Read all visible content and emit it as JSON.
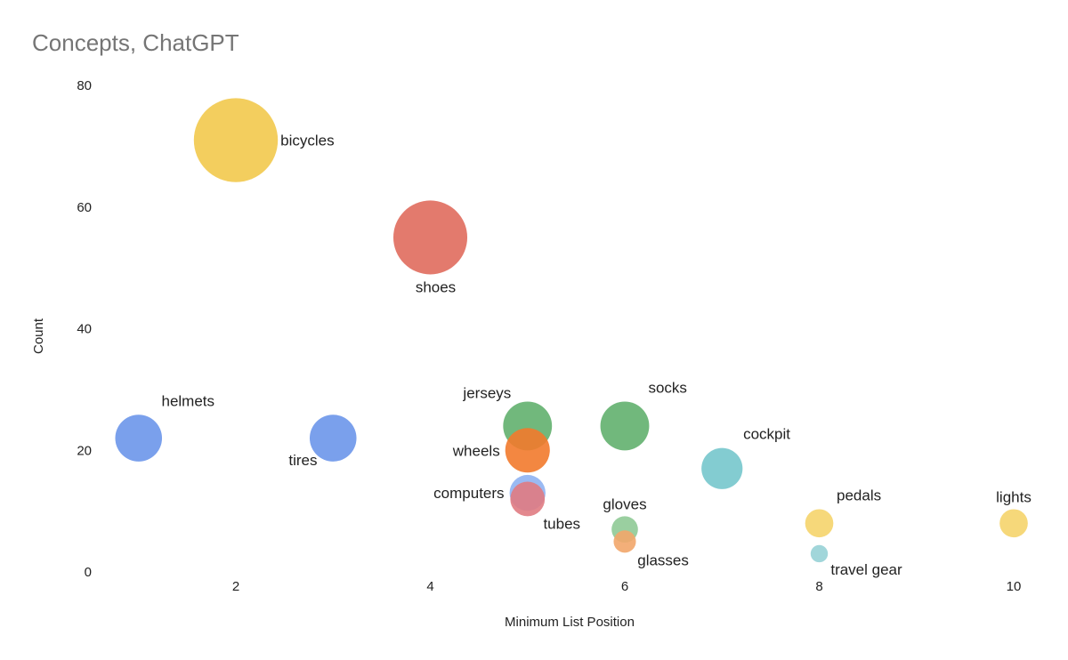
{
  "chart_data": {
    "type": "scatter",
    "title": "Concepts, ChatGPT",
    "xlabel": "Minimum List Position",
    "ylabel": "Count",
    "xlim": [
      0.5,
      10.5
    ],
    "ylim": [
      0,
      80
    ],
    "x_ticks": [
      "2",
      "4",
      "6",
      "8",
      "10"
    ],
    "y_ticks": [
      "0",
      "20",
      "40",
      "60",
      "80"
    ],
    "grid": false,
    "legend": "none",
    "points": [
      {
        "label": "bicycles",
        "x": 2,
        "y": 71,
        "size": 71,
        "color": "#f2c94c",
        "label_pos": "right"
      },
      {
        "label": "shoes",
        "x": 4,
        "y": 55,
        "size": 55,
        "color": "#e06b5d",
        "label_pos": "below"
      },
      {
        "label": "helmets",
        "x": 1,
        "y": 22,
        "size": 22,
        "color": "#6b96ea",
        "label_pos": "top-right"
      },
      {
        "label": "tires",
        "x": 3,
        "y": 22,
        "size": 22,
        "color": "#6b96ea",
        "label_pos": "bottom-left"
      },
      {
        "label": "jerseys",
        "x": 5,
        "y": 24,
        "size": 24,
        "color": "#62b06e",
        "label_pos": "top-left"
      },
      {
        "label": "wheels",
        "x": 5,
        "y": 20,
        "size": 20,
        "color": "#f27a2c",
        "label_pos": "left"
      },
      {
        "label": "computers",
        "x": 5,
        "y": 13,
        "size": 13,
        "color": "#8fb2f2",
        "label_pos": "left"
      },
      {
        "label": "tubes",
        "x": 5,
        "y": 12,
        "size": 12,
        "color": "#e07b82",
        "label_pos": "bottom-right"
      },
      {
        "label": "socks",
        "x": 6,
        "y": 24,
        "size": 24,
        "color": "#62b06e",
        "label_pos": "top-right"
      },
      {
        "label": "gloves",
        "x": 6,
        "y": 7,
        "size": 7,
        "color": "#8fca96",
        "label_pos": "above"
      },
      {
        "label": "glasses",
        "x": 6,
        "y": 5,
        "size": 5,
        "color": "#f2a66a",
        "label_pos": "bottom-right"
      },
      {
        "label": "cockpit",
        "x": 7,
        "y": 17,
        "size": 17,
        "color": "#76c6cc",
        "label_pos": "top-right"
      },
      {
        "label": "pedals",
        "x": 8,
        "y": 8,
        "size": 8,
        "color": "#f5d46b",
        "label_pos": "top-right"
      },
      {
        "label": "travel gear",
        "x": 8,
        "y": 3,
        "size": 3,
        "color": "#97d2d6",
        "label_pos": "bottom-right"
      },
      {
        "label": "lights",
        "x": 10,
        "y": 8,
        "size": 8,
        "color": "#f5d46b",
        "label_pos": "above"
      }
    ]
  }
}
